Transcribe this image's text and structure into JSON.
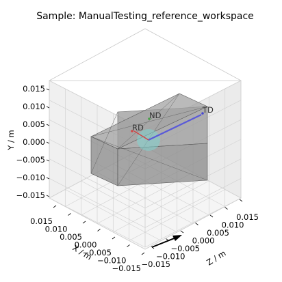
{
  "chart_data": {
    "type": "3d-scatter",
    "title": "Sample: ManualTesting_reference_workspace",
    "xlabel": "X / m",
    "ylabel": "Y / m",
    "zlabel": "Z / m",
    "y_ticks": [
      "0.015",
      "0.010",
      "0.005",
      "0.000",
      "−0.005",
      "−0.010",
      "−0.015"
    ],
    "x_ticks": [
      "0.015",
      "0.010",
      "0.005",
      "0.000",
      "−0.005",
      "−0.010",
      "−0.015"
    ],
    "z_ticks": [
      "−0.015",
      "−0.010",
      "−0.005",
      "0.000",
      "0.005",
      "0.010",
      "0.015"
    ],
    "ylim": [
      -0.015,
      0.015
    ],
    "xlim": [
      -0.015,
      0.015
    ],
    "zlim": [
      -0.015,
      0.015
    ],
    "grid": true,
    "markers": [
      {
        "label": "RD",
        "color": "#d04848"
      },
      {
        "label": "ND",
        "color": "#48a048"
      },
      {
        "label": "TD",
        "color": "#4848d0"
      }
    ],
    "colors": {
      "box_fill": "#8a8a8a",
      "sphere": "#7fd4d0",
      "pane": "#f2f2f2",
      "grid": "#d0d0d0"
    }
  }
}
